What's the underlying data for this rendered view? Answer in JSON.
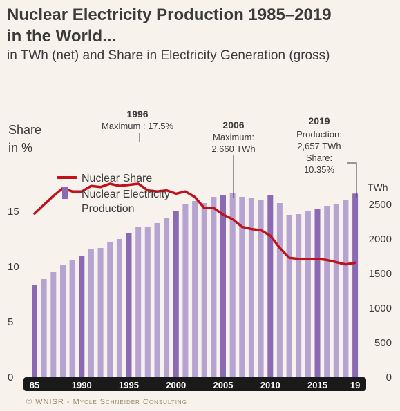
{
  "title_line1": "Nuclear Electricity Production 1985–2019",
  "title_line2": "in the World...",
  "subtitle": "in TWh (net) and Share in Electricity Generation (gross)",
  "credit": "© WNISR - Mycle Schneider Consulting",
  "colors": {
    "share_line": "#c0121d",
    "bar_light": "#b7a3d1",
    "bar_dark": "#8a6bb3",
    "axis_band": "#1a1a1a",
    "background": "#f8f2ed"
  },
  "chart_data": {
    "type": "bar",
    "left_axis": {
      "label_line1": "Share",
      "label_line2": "in %",
      "range": [
        0,
        18.75
      ],
      "ticks": [
        "0",
        "5",
        "10",
        "15"
      ]
    },
    "right_axis": {
      "unit_label": "TWh",
      "range": [
        0,
        3000
      ],
      "ticks": [
        "0",
        "500",
        "1000",
        "1500",
        "2000",
        "2500"
      ]
    },
    "x_tick_labels": [
      "85",
      "1990",
      "1995",
      "2000",
      "2005",
      "2010",
      "2015",
      "19"
    ],
    "x_tick_years": [
      1985,
      1990,
      1995,
      2000,
      2005,
      2010,
      2015,
      2019
    ],
    "series": [
      {
        "name": "Nuclear Electricity Production",
        "kind": "bar",
        "years": [
          1985,
          1986,
          1987,
          1988,
          1989,
          1990,
          1991,
          1992,
          1993,
          1994,
          1995,
          1996,
          1997,
          1998,
          1999,
          2000,
          2001,
          2002,
          2003,
          2004,
          2005,
          2006,
          2007,
          2008,
          2009,
          2010,
          2011,
          2012,
          2013,
          2014,
          2015,
          2016,
          2017,
          2018,
          2019
        ],
        "values": [
          1330,
          1420,
          1520,
          1620,
          1700,
          1760,
          1850,
          1870,
          1950,
          2000,
          2090,
          2180,
          2180,
          2230,
          2310,
          2410,
          2510,
          2550,
          2520,
          2610,
          2630,
          2660,
          2610,
          2600,
          2560,
          2630,
          2520,
          2350,
          2360,
          2400,
          2440,
          2480,
          2500,
          2560,
          2657
        ],
        "highlight_years": [
          1985,
          1990,
          1995,
          2000,
          2005,
          2010,
          2015,
          2019
        ]
      },
      {
        "name": "Nuclear Share",
        "kind": "line",
        "years": [
          1985,
          1986,
          1987,
          1988,
          1989,
          1990,
          1991,
          1992,
          1993,
          1994,
          1995,
          1996,
          1997,
          1998,
          1999,
          2000,
          2001,
          2002,
          2003,
          2004,
          2005,
          2006,
          2007,
          2008,
          2009,
          2010,
          2011,
          2012,
          2013,
          2014,
          2015,
          2016,
          2017,
          2018,
          2019
        ],
        "values": [
          14.8,
          15.6,
          16.4,
          17.1,
          16.8,
          16.8,
          17.3,
          17.2,
          17.5,
          17.3,
          17.4,
          17.5,
          16.9,
          16.8,
          16.9,
          16.6,
          16.8,
          16.3,
          15.3,
          15.3,
          14.7,
          14.3,
          13.6,
          13.4,
          13.3,
          12.8,
          11.7,
          10.8,
          10.7,
          10.7,
          10.7,
          10.6,
          10.4,
          10.2,
          10.35
        ]
      }
    ],
    "legend": [
      "Nuclear Share",
      "Nuclear Electricity Production"
    ],
    "legend_placement": "upper-left",
    "annotations": [
      {
        "id": "a1996",
        "heading": "1996",
        "lines": [
          "Maximum : 17.5%"
        ]
      },
      {
        "id": "a2006",
        "heading": "2006",
        "lines": [
          "Maximum:",
          "2,660 TWh"
        ]
      },
      {
        "id": "a2019",
        "heading": "2019",
        "lines": [
          "Production:",
          "2,657 TWh",
          "Share:",
          "10.35%"
        ]
      }
    ]
  }
}
